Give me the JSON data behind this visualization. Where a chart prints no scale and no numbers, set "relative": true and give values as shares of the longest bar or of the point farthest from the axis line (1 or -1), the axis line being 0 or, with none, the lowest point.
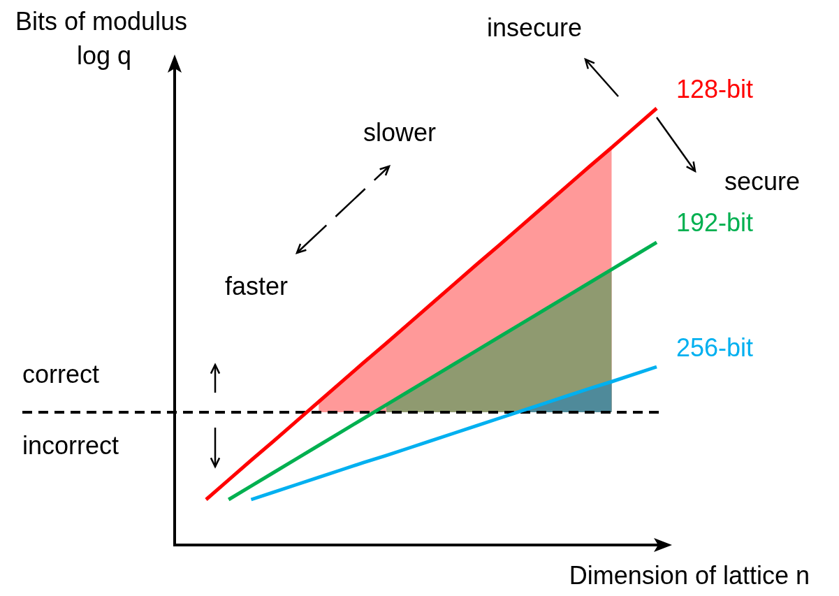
{
  "chart_data": {
    "type": "line",
    "relative": true,
    "xlabel": "Dimension of lattice n",
    "ylabel": "Bits of modulus",
    "categories": [
      null,
      null,
      null,
      null,
      null,
      null,
      null,
      null,
      null,
      null,
      null,
      null,
      null,
      null,
      null,
      null,
      null,
      null,
      null,
      null,
      null
    ],
    "series": [
      {
        "type": "area",
        "color": "#ff9999",
        "values": [
          null,
          null,
          null,
          null,
          null,
          0.328,
          0.373,
          0.418,
          0.462,
          0.507,
          0.552,
          0.597,
          0.642,
          0.686,
          0.731,
          0.776,
          0.821,
          0.866,
          0.91,
          null,
          null
        ]
      },
      {
        "type": "area",
        "color": "#8f9a70",
        "values": [
          null,
          null,
          null,
          null,
          null,
          null,
          null,
          null,
          0.321,
          0.352,
          0.383,
          0.414,
          0.445,
          0.476,
          0.507,
          0.538,
          0.569,
          0.6,
          0.631,
          null,
          null
        ]
      },
      {
        "type": "area",
        "color": "#4f8a9a",
        "values": [
          null,
          null,
          null,
          null,
          null,
          null,
          null,
          null,
          null,
          null,
          null,
          null,
          null,
          null,
          0.307,
          0.324,
          0.341,
          0.358,
          0.374,
          null,
          null
        ]
      },
      {
        "name": "128-bit",
        "color": "#ff0000",
        "values": [
          0.104,
          0.149,
          0.194,
          0.238,
          0.283,
          0.328,
          0.373,
          0.418,
          0.462,
          0.507,
          0.552,
          0.597,
          0.642,
          0.686,
          0.731,
          0.776,
          0.821,
          0.866,
          0.91,
          0.955,
          1.0
        ]
      },
      {
        "name": "192-bit",
        "color": "#00b050",
        "values": [
          null,
          0.104,
          0.135,
          0.166,
          0.197,
          0.228,
          0.259,
          0.29,
          0.321,
          0.352,
          0.383,
          0.414,
          0.445,
          0.476,
          0.507,
          0.538,
          0.569,
          0.6,
          0.631,
          0.662,
          0.693
        ]
      },
      {
        "name": "256-bit",
        "color": "#00b0f0",
        "values": [
          null,
          null,
          0.104,
          0.121,
          0.138,
          0.155,
          0.172,
          0.189,
          0.205,
          0.222,
          0.239,
          0.256,
          0.273,
          0.29,
          0.307,
          0.324,
          0.341,
          0.358,
          0.374,
          0.391,
          0.408
        ]
      }
    ],
    "ref_lines": [
      {
        "axis": "y",
        "value": 0.304,
        "color": "#000000",
        "line_style": "dashed"
      }
    ],
    "annotations": [
      "log q",
      "correct",
      "incorrect",
      "slower",
      "faster",
      "insecure",
      "secure"
    ],
    "marker": "none",
    "line_style": "solid",
    "legend": false,
    "grid": false
  }
}
